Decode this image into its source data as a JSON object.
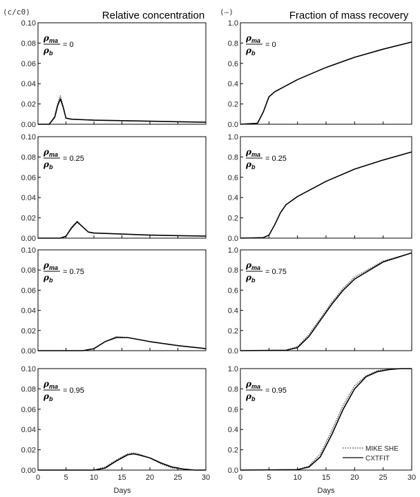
{
  "titles": {
    "left": "Relative concentration",
    "right": "Fraction of mass recovery"
  },
  "units": {
    "left": "(c/c0)",
    "right": "(–)"
  },
  "xlabel": "Days",
  "legend": {
    "mike_she": "MIKE SHE",
    "cxtfit": "CXTFIT"
  },
  "param_label": {
    "rho_numerator": "ρ",
    "numerator_sub": "ma",
    "rho_denominator": "ρ",
    "denominator_sub": "b"
  },
  "colors": {
    "axis": "#000000",
    "mike_she": "#333333",
    "cxtfit": "#000000"
  },
  "chart_data": [
    {
      "type": "line",
      "panel": "concentration",
      "param": "0",
      "xlim": [
        0,
        30
      ],
      "ylim": [
        0,
        0.1
      ],
      "xticks": [
        "0",
        "5",
        "10",
        "15",
        "20",
        "25",
        "30"
      ],
      "yticks": [
        "0.00",
        "0.02",
        "0.04",
        "0.06",
        "0.08",
        "0.10"
      ],
      "x": [
        0,
        2,
        3,
        3.5,
        4,
        4.5,
        5,
        6,
        10,
        20,
        30
      ],
      "series": [
        {
          "name": "MIKE SHE",
          "style": "dotted",
          "values": [
            0,
            0,
            0.008,
            0.02,
            0.028,
            0.018,
            0.006,
            0.005,
            0.004,
            0.003,
            0.002
          ]
        },
        {
          "name": "CXTFIT",
          "style": "solid",
          "values": [
            0,
            0,
            0.007,
            0.018,
            0.025,
            0.017,
            0.006,
            0.005,
            0.004,
            0.003,
            0.002
          ]
        }
      ]
    },
    {
      "type": "line",
      "panel": "recovery",
      "param": "0",
      "xlim": [
        0,
        30
      ],
      "ylim": [
        0,
        1.0
      ],
      "xticks": [
        "0",
        "5",
        "10",
        "15",
        "20",
        "25",
        "30"
      ],
      "yticks": [
        "0.0",
        "0.2",
        "0.4",
        "0.6",
        "0.8",
        "1.0"
      ],
      "x": [
        0,
        3,
        4,
        5,
        6,
        10,
        15,
        20,
        25,
        30
      ],
      "series": [
        {
          "name": "MIKE SHE",
          "style": "dotted",
          "values": [
            0,
            0.01,
            0.12,
            0.27,
            0.32,
            0.44,
            0.56,
            0.66,
            0.74,
            0.81
          ]
        },
        {
          "name": "CXTFIT",
          "style": "solid",
          "values": [
            0,
            0.01,
            0.12,
            0.27,
            0.32,
            0.44,
            0.56,
            0.66,
            0.74,
            0.81
          ]
        }
      ]
    },
    {
      "type": "line",
      "panel": "concentration",
      "param": "0.25",
      "xlim": [
        0,
        30
      ],
      "ylim": [
        0,
        0.1
      ],
      "xticks": [
        "0",
        "5",
        "10",
        "15",
        "20",
        "25",
        "30"
      ],
      "yticks": [
        "0.00",
        "0.02",
        "0.04",
        "0.06",
        "0.08",
        "0.10"
      ],
      "x": [
        0,
        4,
        5,
        6,
        7,
        8,
        9,
        10,
        15,
        20,
        30
      ],
      "series": [
        {
          "name": "MIKE SHE",
          "style": "dotted",
          "values": [
            0,
            0,
            0.002,
            0.011,
            0.017,
            0.011,
            0.006,
            0.005,
            0.004,
            0.003,
            0.002
          ]
        },
        {
          "name": "CXTFIT",
          "style": "solid",
          "values": [
            0,
            0,
            0.002,
            0.01,
            0.016,
            0.011,
            0.006,
            0.005,
            0.004,
            0.003,
            0.002
          ]
        }
      ]
    },
    {
      "type": "line",
      "panel": "recovery",
      "param": "0.25",
      "xlim": [
        0,
        30
      ],
      "ylim": [
        0,
        1.0
      ],
      "xticks": [
        "0",
        "5",
        "10",
        "15",
        "20",
        "25",
        "30"
      ],
      "yticks": [
        "0.0",
        "0.2",
        "0.4",
        "0.6",
        "0.8",
        "1.0"
      ],
      "x": [
        0,
        4,
        5,
        6,
        7,
        8,
        10,
        15,
        20,
        25,
        30
      ],
      "series": [
        {
          "name": "MIKE SHE",
          "style": "dotted",
          "values": [
            0,
            0.005,
            0.03,
            0.13,
            0.25,
            0.33,
            0.41,
            0.56,
            0.68,
            0.77,
            0.85
          ]
        },
        {
          "name": "CXTFIT",
          "style": "solid",
          "values": [
            0,
            0.005,
            0.03,
            0.13,
            0.25,
            0.33,
            0.41,
            0.56,
            0.68,
            0.77,
            0.85
          ]
        }
      ]
    },
    {
      "type": "line",
      "panel": "concentration",
      "param": "0.75",
      "xlim": [
        0,
        30
      ],
      "ylim": [
        0,
        0.1
      ],
      "xticks": [
        "0",
        "5",
        "10",
        "15",
        "20",
        "25",
        "30"
      ],
      "yticks": [
        "0.00",
        "0.02",
        "0.04",
        "0.06",
        "0.08",
        "0.10"
      ],
      "x": [
        0,
        8,
        10,
        12,
        14,
        16,
        18,
        20,
        25,
        30
      ],
      "series": [
        {
          "name": "MIKE SHE",
          "style": "dotted",
          "values": [
            0,
            0,
            0.002,
            0.009,
            0.014,
            0.013,
            0.011,
            0.009,
            0.005,
            0.002
          ]
        },
        {
          "name": "CXTFIT",
          "style": "solid",
          "values": [
            0,
            0,
            0.002,
            0.009,
            0.013,
            0.013,
            0.011,
            0.009,
            0.005,
            0.002
          ]
        }
      ]
    },
    {
      "type": "line",
      "panel": "recovery",
      "param": "0.75",
      "xlim": [
        0,
        30
      ],
      "ylim": [
        0,
        1.0
      ],
      "xticks": [
        "0",
        "5",
        "10",
        "15",
        "20",
        "25",
        "30"
      ],
      "yticks": [
        "0.0",
        "0.2",
        "0.4",
        "0.6",
        "0.8",
        "1.0"
      ],
      "x": [
        0,
        8,
        10,
        12,
        14,
        16,
        18,
        20,
        25,
        30
      ],
      "series": [
        {
          "name": "MIKE SHE",
          "style": "dotted",
          "values": [
            0,
            0.005,
            0.04,
            0.16,
            0.32,
            0.48,
            0.62,
            0.73,
            0.89,
            0.97
          ]
        },
        {
          "name": "CXTFIT",
          "style": "solid",
          "values": [
            0,
            0.004,
            0.03,
            0.14,
            0.3,
            0.46,
            0.6,
            0.71,
            0.88,
            0.97
          ]
        }
      ]
    },
    {
      "type": "line",
      "panel": "concentration",
      "param": "0.95",
      "xlim": [
        0,
        30
      ],
      "ylim": [
        0,
        0.1
      ],
      "xticks": [
        "0",
        "5",
        "10",
        "15",
        "20",
        "25",
        "30"
      ],
      "yticks": [
        "0.00",
        "0.02",
        "0.04",
        "0.06",
        "0.08",
        "0.10"
      ],
      "x": [
        0,
        10,
        12,
        14,
        16,
        17,
        18,
        20,
        22,
        24,
        26,
        28,
        30
      ],
      "series": [
        {
          "name": "MIKE SHE",
          "style": "dotted",
          "values": [
            0,
            0,
            0.003,
            0.01,
            0.016,
            0.017,
            0.016,
            0.012,
            0.006,
            0.002,
            0.001,
            0,
            0
          ]
        },
        {
          "name": "CXTFIT",
          "style": "solid",
          "values": [
            0,
            0,
            0.002,
            0.009,
            0.015,
            0.016,
            0.015,
            0.012,
            0.007,
            0.003,
            0.001,
            0,
            0
          ]
        }
      ]
    },
    {
      "type": "line",
      "panel": "recovery",
      "param": "0.95",
      "xlim": [
        0,
        30
      ],
      "ylim": [
        0,
        1.0
      ],
      "xticks": [
        "0",
        "5",
        "10",
        "15",
        "20",
        "25",
        "30"
      ],
      "yticks": [
        "0.0",
        "0.2",
        "0.4",
        "0.6",
        "0.8",
        "1.0"
      ],
      "x": [
        0,
        10,
        12,
        14,
        16,
        18,
        20,
        22,
        24,
        26,
        28,
        30
      ],
      "series": [
        {
          "name": "MIKE SHE",
          "style": "dotted",
          "values": [
            0,
            0.005,
            0.04,
            0.16,
            0.39,
            0.64,
            0.83,
            0.93,
            0.98,
            0.995,
            1.0,
            1.0
          ]
        },
        {
          "name": "CXTFIT",
          "style": "solid",
          "values": [
            0,
            0.004,
            0.03,
            0.13,
            0.35,
            0.6,
            0.8,
            0.92,
            0.97,
            0.99,
            1.0,
            1.0
          ]
        }
      ]
    }
  ]
}
